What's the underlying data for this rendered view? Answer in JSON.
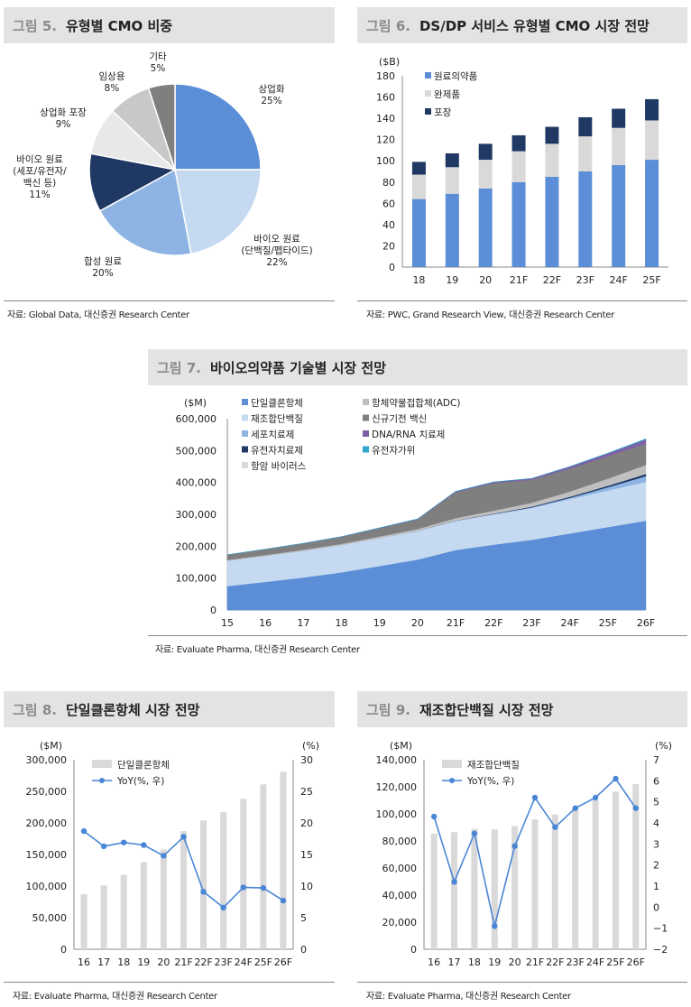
{
  "fig5": {
    "num": "그림 5.",
    "title": "유형별 CMO 비중",
    "source": "자료: Global Data, 대신증권 Research Center",
    "chart_data": {
      "type": "pie",
      "slices": [
        {
          "label": [
            "상업화"
          ],
          "pct": "25%",
          "value": 25,
          "color": "#5a8fd8"
        },
        {
          "label": [
            "바이오 원료",
            "(단백질/펩타이드)"
          ],
          "pct": "22%",
          "value": 22,
          "color": "#c5d9f1"
        },
        {
          "label": [
            "합성 원료"
          ],
          "pct": "20%",
          "value": 20,
          "color": "#8eb4e3"
        },
        {
          "label": [
            "바이오 원료",
            "(세포/유전자/",
            "백신 등)"
          ],
          "pct": "11%",
          "value": 11,
          "color": "#1f3864"
        },
        {
          "label": [
            "상업화 포장"
          ],
          "pct": "9%",
          "value": 9,
          "color": "#e8e8e8"
        },
        {
          "label": [
            "임상용"
          ],
          "pct": "8%",
          "value": 8,
          "color": "#c8c8c8"
        },
        {
          "label": [
            "기타"
          ],
          "pct": "5%",
          "value": 5,
          "color": "#7f7f7f"
        }
      ]
    }
  },
  "fig6": {
    "num": "그림 6.",
    "title": "DS/DP 서비스 유형별 CMO 시장 전망",
    "source": "자료: PWC, Grand Research View, 대신증권 Research Center",
    "chart_data": {
      "type": "bar",
      "stacked": true,
      "unit": "($B)",
      "categories": [
        "18",
        "19",
        "20",
        "21F",
        "22F",
        "23F",
        "24F",
        "25F"
      ],
      "ylim": [
        0,
        180
      ],
      "yticks": [
        0,
        20,
        40,
        60,
        80,
        100,
        120,
        140,
        160,
        180
      ],
      "series": [
        {
          "name": "원료의약품",
          "color": "#5b8ed6",
          "values": [
            64,
            69,
            74,
            80,
            85,
            90,
            96,
            101
          ]
        },
        {
          "name": "완제품",
          "color": "#d9d9d9",
          "values": [
            23,
            25,
            27,
            29,
            31,
            33,
            35,
            37
          ]
        },
        {
          "name": "포장",
          "color": "#1f3864",
          "values": [
            12,
            13,
            15,
            15,
            16,
            18,
            18,
            20
          ]
        }
      ]
    }
  },
  "fig7": {
    "num": "그림 7.",
    "title": "바이오의약품 기술별 시장 전망",
    "source": "자료: Evaluate Pharma, 대신증권 Research Center",
    "chart_data": {
      "type": "area",
      "stacked": true,
      "unit": "($M)",
      "categories": [
        "15",
        "16",
        "17",
        "18",
        "19",
        "20",
        "21F",
        "22F",
        "23F",
        "24F",
        "25F",
        "26F"
      ],
      "ylim": [
        0,
        600000
      ],
      "yticks": [
        "0",
        "100,000",
        "200,000",
        "300,000",
        "400,000",
        "500,000",
        "600,000"
      ],
      "series": [
        {
          "name": "단일클론항체",
          "color": "#5b8ed6",
          "values": [
            75000,
            88000,
            102000,
            118000,
            138000,
            158000,
            188000,
            205000,
            220000,
            240000,
            260000,
            280000
          ]
        },
        {
          "name": "재조합단백질",
          "color": "#c5d9f1",
          "values": [
            80000,
            82000,
            84000,
            86000,
            88000,
            90000,
            92000,
            95000,
            100000,
            108000,
            115000,
            122000
          ]
        },
        {
          "name": "세포치료제",
          "color": "#8eb4e3",
          "values": [
            0,
            0,
            0,
            0,
            0,
            0,
            0,
            1000,
            2000,
            4000,
            10000,
            18000
          ]
        },
        {
          "name": "유전자치료제",
          "color": "#1f3864",
          "values": [
            0,
            0,
            0,
            0,
            0,
            500,
            1000,
            1500,
            2500,
            3500,
            5000,
            7000
          ]
        },
        {
          "name": "항암 바이러스",
          "color": "#d9d9d9",
          "values": [
            0,
            0,
            0,
            0,
            0,
            0,
            0,
            0,
            0,
            0,
            0,
            0
          ]
        },
        {
          "name": "항체약물접합체(ADC)",
          "color": "#bfbfbf",
          "values": [
            2000,
            2500,
            3000,
            3500,
            4500,
            5500,
            7000,
            9000,
            12000,
            16000,
            22000,
            28000
          ]
        },
        {
          "name": "신규기전 백신",
          "color": "#7f7f7f",
          "values": [
            16000,
            18000,
            20000,
            22000,
            26000,
            30000,
            82000,
            87000,
            72000,
            72000,
            70000,
            67000
          ]
        },
        {
          "name": "DNA/RNA 치료제",
          "color": "#7f5fa8",
          "values": [
            0,
            0,
            0,
            500,
            1000,
            1500,
            2000,
            3000,
            4000,
            6000,
            9000,
            13000
          ]
        },
        {
          "name": "유전자가위",
          "color": "#31a7c9",
          "values": [
            0,
            0,
            0,
            0,
            0,
            0,
            0,
            0,
            0,
            500,
            1000,
            2000
          ]
        }
      ]
    }
  },
  "fig8": {
    "num": "그림 8.",
    "title": "단일클론항체 시장 전망",
    "source": "자료: Evaluate Pharma, 대신증권 Research Center",
    "chart_data": {
      "type": "bar+line",
      "unit_left": "($M)",
      "unit_right": "(%)",
      "categories": [
        "16",
        "17",
        "18",
        "19",
        "20",
        "21F",
        "22F",
        "23F",
        "24F",
        "25F",
        "26F"
      ],
      "ylim": [
        0,
        300000
      ],
      "yticks": [
        "0",
        "50,000",
        "100,000",
        "150,000",
        "200,000",
        "250,000",
        "300,000"
      ],
      "y2lim": [
        0,
        30
      ],
      "y2ticks": [
        "0",
        "5",
        "10",
        "15",
        "20",
        "25",
        "30"
      ],
      "bar_series": {
        "name": "단일클론항체",
        "color": "#d9d9d9",
        "values": [
          87000,
          101000,
          118000,
          138000,
          158000,
          187000,
          204000,
          217000,
          238000,
          261000,
          281000
        ]
      },
      "line_series": {
        "name": "YoY(%, 우)",
        "color": "#4a86d6",
        "values": [
          18.7,
          16.3,
          16.9,
          16.5,
          14.8,
          17.8,
          9.1,
          6.6,
          9.8,
          9.7,
          7.7
        ]
      }
    }
  },
  "fig9": {
    "num": "그림 9.",
    "title": "재조합단백질 시장 전망",
    "source": "자료: Evaluate Pharma, 대신증권 Research Center",
    "chart_data": {
      "type": "bar+line",
      "unit_left": "($M)",
      "unit_right": "(%)",
      "categories": [
        "16",
        "17",
        "18",
        "19",
        "20",
        "21F",
        "22F",
        "23F",
        "24F",
        "25F",
        "26F"
      ],
      "ylim": [
        0,
        140000
      ],
      "yticks": [
        "0",
        "20,000",
        "40,000",
        "60,000",
        "80,000",
        "100,000",
        "120,000",
        "140,000"
      ],
      "y2lim": [
        -2,
        7
      ],
      "y2ticks": [
        "−2",
        "−1",
        "0",
        "1",
        "2",
        "3",
        "4",
        "5",
        "6",
        "7"
      ],
      "bar_series": {
        "name": "재조합단백질",
        "color": "#d9d9d9",
        "values": [
          85500,
          86500,
          89000,
          88500,
          91000,
          96000,
          99500,
          104000,
          110000,
          116500,
          122000
        ]
      },
      "line_series": {
        "name": "YoY(%, 우)",
        "color": "#4a86d6",
        "values": [
          4.3,
          1.2,
          3.5,
          -0.9,
          2.9,
          5.2,
          3.8,
          4.7,
          5.2,
          6.1,
          4.7
        ]
      }
    }
  }
}
